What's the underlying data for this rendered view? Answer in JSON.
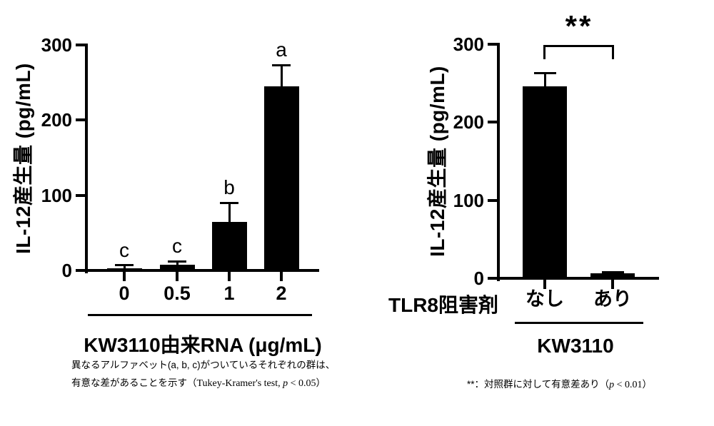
{
  "page": {
    "background": "#ffffff",
    "ink": "#000000"
  },
  "chart_data": [
    {
      "type": "bar",
      "title": "",
      "ylabel": "IL-12産生量 (pg/mL)",
      "xlabel": "KW3110由来RNA (μg/mL)",
      "categories": [
        "0",
        "0.5",
        "1",
        "2"
      ],
      "values": [
        3,
        8,
        65,
        245
      ],
      "errors_plus": [
        4,
        4,
        25,
        28
      ],
      "bar_labels": [
        "c",
        "c",
        "b",
        "a"
      ],
      "yticks": [
        0,
        100,
        200,
        300
      ],
      "ylim": [
        0,
        300
      ],
      "grid": false,
      "legend": "none",
      "bar_color": "#000000",
      "footnote_lines": [
        [
          {
            "t": "異なるアルファベット(a, b, c)がついているそれぞれの群は、",
            "f": "sans"
          }
        ],
        [
          {
            "t": "有意な差があることを示す（",
            "f": "sans"
          },
          {
            "t": "Tukey-Kramer's test, ",
            "f": "serif"
          },
          {
            "t": "p",
            "f": "serif-italic"
          },
          {
            "t": " < 0.05",
            "f": "serif"
          },
          {
            "t": "）",
            "f": "sans"
          }
        ]
      ]
    },
    {
      "type": "bar",
      "title": "",
      "ylabel": "IL-12産生量 (pg/mL)",
      "xlabel": "KW3110",
      "row_label": "TLR8阻害剤",
      "categories": [
        "なし",
        "あり"
      ],
      "values": [
        246,
        6
      ],
      "errors_plus": [
        17,
        2
      ],
      "yticks": [
        0,
        100,
        200,
        300
      ],
      "ylim": [
        0,
        300
      ],
      "grid": false,
      "legend": "none",
      "bar_color": "#000000",
      "significance": {
        "label": "**",
        "between": [
          "なし",
          "あり"
        ],
        "note": "p < 0.01"
      },
      "footnote": [
        {
          "t": "**：対照群に対して有意差あり（",
          "f": "sans"
        },
        {
          "t": "p",
          "f": "serif-italic"
        },
        {
          "t": " < 0.01",
          "f": "serif"
        },
        {
          "t": "）",
          "f": "sans"
        }
      ]
    }
  ]
}
